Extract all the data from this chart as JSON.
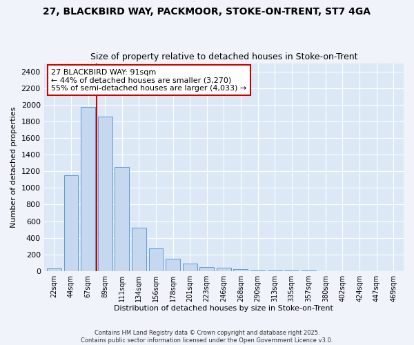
{
  "title_line1": "27, BLACKBIRD WAY, PACKMOOR, STOKE-ON-TRENT, ST7 4GA",
  "title_line2": "Size of property relative to detached houses in Stoke-on-Trent",
  "xlabel": "Distribution of detached houses by size in Stoke-on-Trent",
  "ylabel": "Number of detached properties",
  "categories": [
    "22sqm",
    "44sqm",
    "67sqm",
    "89sqm",
    "111sqm",
    "134sqm",
    "156sqm",
    "178sqm",
    "201sqm",
    "223sqm",
    "246sqm",
    "268sqm",
    "290sqm",
    "313sqm",
    "335sqm",
    "357sqm",
    "380sqm",
    "402sqm",
    "424sqm",
    "447sqm",
    "469sqm"
  ],
  "values": [
    30,
    1150,
    1980,
    1860,
    1250,
    520,
    275,
    150,
    90,
    50,
    35,
    20,
    8,
    5,
    3,
    2,
    1,
    1,
    1,
    0,
    0
  ],
  "bar_color": "#c5d8f0",
  "bar_edge_color": "#5b9bd5",
  "vline_color": "#cc0000",
  "vline_x_index": 3,
  "annotation_text": "27 BLACKBIRD WAY: 91sqm\n← 44% of detached houses are smaller (3,270)\n55% of semi-detached houses are larger (4,033) →",
  "annotation_box_color": "#ffffff",
  "annotation_box_edge": "#cc0000",
  "ylim": [
    0,
    2500
  ],
  "yticks": [
    0,
    200,
    400,
    600,
    800,
    1000,
    1200,
    1400,
    1600,
    1800,
    2000,
    2200,
    2400
  ],
  "plot_bg_color": "#dce8f5",
  "grid_color": "#ffffff",
  "fig_bg_color": "#f0f4fa",
  "footer_line1": "Contains HM Land Registry data © Crown copyright and database right 2025.",
  "footer_line2": "Contains public sector information licensed under the Open Government Licence v3.0."
}
